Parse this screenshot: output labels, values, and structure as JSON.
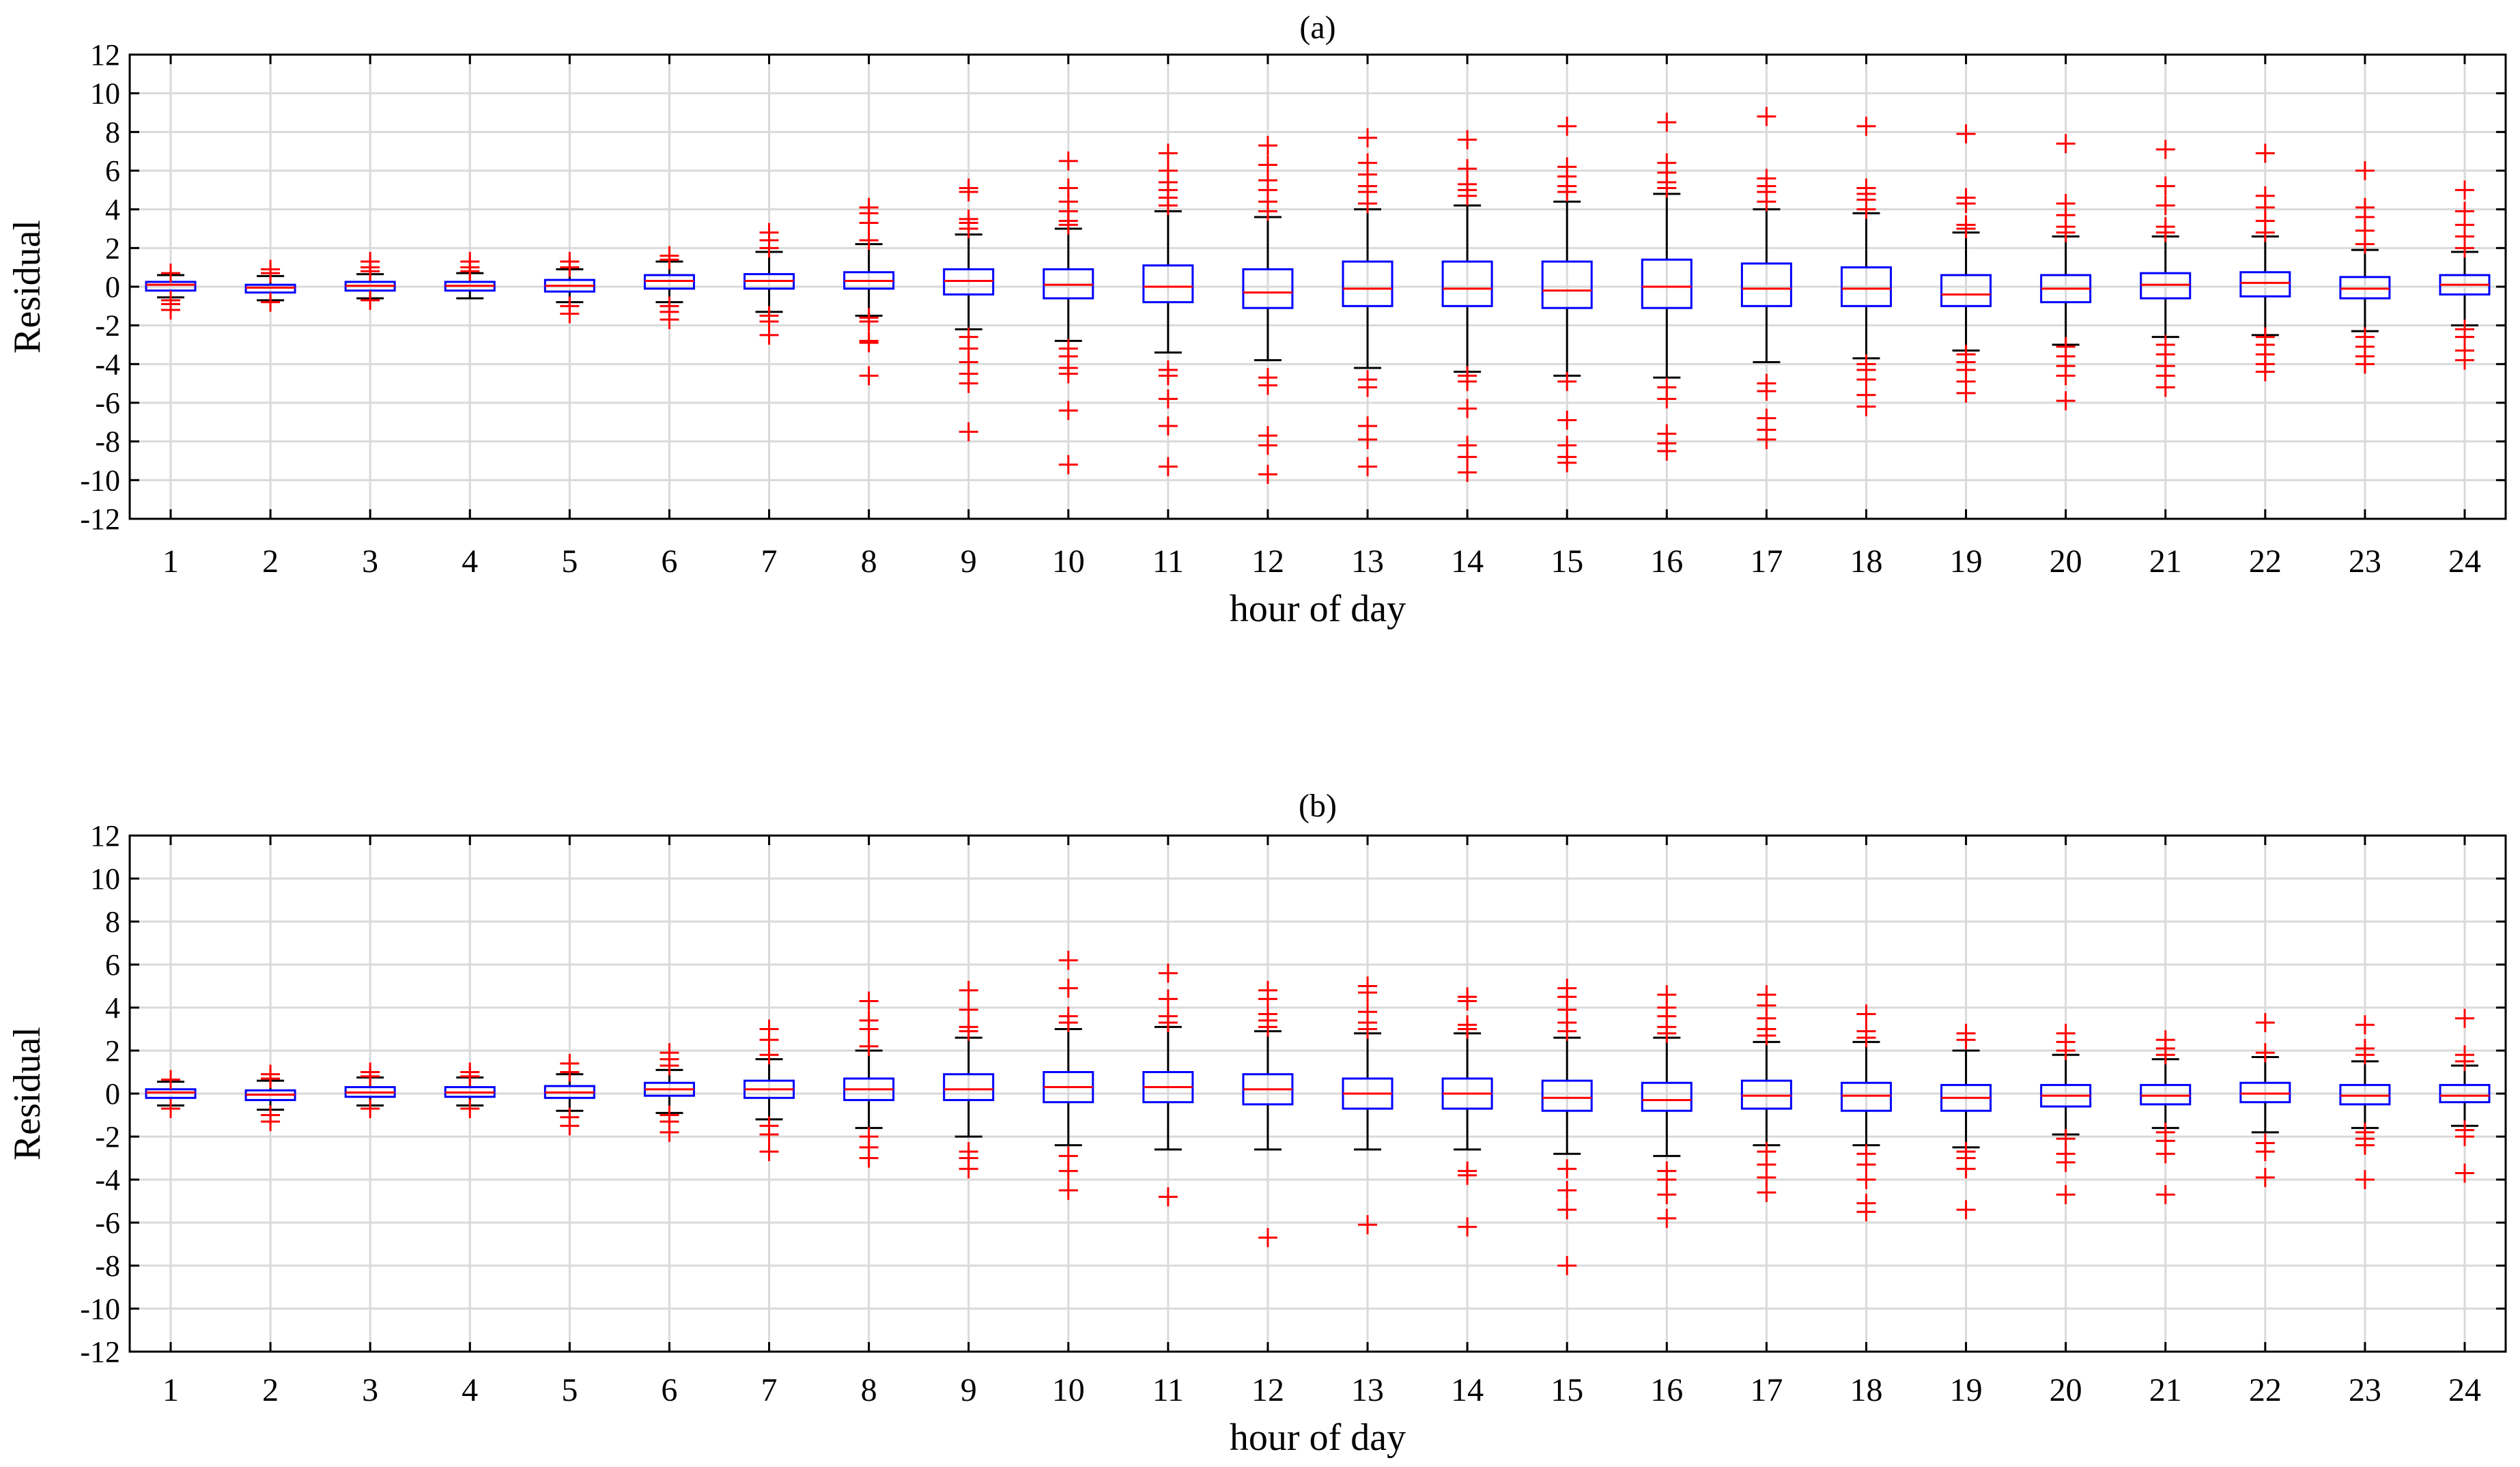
{
  "chart_data": [
    {
      "type": "box",
      "title": "(a)",
      "xlabel": "hour of day",
      "ylabel": "Residual",
      "ylim": [
        -12,
        12
      ],
      "yticks": [
        "-12",
        "-10",
        "-8",
        "-6",
        "-4",
        "-2",
        "0",
        "2",
        "4",
        "6",
        "8",
        "10",
        "12"
      ],
      "grid": true,
      "categories": [
        "1",
        "2",
        "3",
        "4",
        "5",
        "6",
        "7",
        "8",
        "9",
        "10",
        "11",
        "12",
        "13",
        "14",
        "15",
        "16",
        "17",
        "18",
        "19",
        "20",
        "21",
        "22",
        "23",
        "24"
      ],
      "boxes": [
        {
          "q1": -0.2,
          "median": 0.1,
          "q3": 0.25,
          "whisker_low": -0.55,
          "whisker_high": 0.6,
          "outliers": [
            -1.2,
            -0.9,
            -0.7,
            0.7
          ]
        },
        {
          "q1": -0.3,
          "median": -0.05,
          "q3": 0.1,
          "whisker_low": -0.7,
          "whisker_high": 0.55,
          "outliers": [
            -0.8,
            0.7,
            0.9
          ]
        },
        {
          "q1": -0.2,
          "median": 0.05,
          "q3": 0.25,
          "whisker_low": -0.6,
          "whisker_high": 0.65,
          "outliers": [
            -0.7,
            0.8,
            1.0,
            1.3
          ]
        },
        {
          "q1": -0.2,
          "median": 0.05,
          "q3": 0.25,
          "whisker_low": -0.6,
          "whisker_high": 0.7,
          "outliers": [
            0.8,
            1.0,
            1.3
          ]
        },
        {
          "q1": -0.25,
          "median": 0.05,
          "q3": 0.35,
          "whisker_low": -0.8,
          "whisker_high": 0.9,
          "outliers": [
            -1.4,
            -1.0,
            1.0,
            1.3
          ]
        },
        {
          "q1": -0.1,
          "median": 0.3,
          "q3": 0.6,
          "whisker_low": -0.8,
          "whisker_high": 1.3,
          "outliers": [
            -1.7,
            -1.3,
            -1.0,
            1.4,
            1.6
          ]
        },
        {
          "q1": -0.1,
          "median": 0.3,
          "q3": 0.65,
          "whisker_low": -1.3,
          "whisker_high": 1.8,
          "outliers": [
            -2.5,
            -1.8,
            -1.5,
            2.0,
            2.4,
            2.8
          ]
        },
        {
          "q1": -0.1,
          "median": 0.3,
          "q3": 0.75,
          "whisker_low": -1.5,
          "whisker_high": 2.2,
          "outliers": [
            -4.6,
            -2.9,
            -2.8,
            -1.8,
            -1.6,
            2.4,
            3.3,
            3.8,
            4.1
          ]
        },
        {
          "q1": -0.4,
          "median": 0.3,
          "q3": 0.9,
          "whisker_low": -2.2,
          "whisker_high": 2.7,
          "outliers": [
            -7.5,
            -5.0,
            -4.5,
            -3.9,
            -3.2,
            -2.6,
            3.0,
            3.3,
            3.5,
            4.9,
            5.1
          ]
        },
        {
          "q1": -0.6,
          "median": 0.1,
          "q3": 0.9,
          "whisker_low": -2.8,
          "whisker_high": 3.0,
          "outliers": [
            -9.2,
            -6.4,
            -4.5,
            -4.2,
            -3.6,
            -3.2,
            3.2,
            3.4,
            3.9,
            4.4,
            5.1,
            6.5
          ]
        },
        {
          "q1": -0.8,
          "median": 0.0,
          "q3": 1.1,
          "whisker_low": -3.4,
          "whisker_high": 3.9,
          "outliers": [
            -9.3,
            -7.2,
            -5.8,
            -4.6,
            -4.3,
            4.2,
            4.6,
            5.0,
            5.4,
            6.0,
            6.9
          ]
        },
        {
          "q1": -1.1,
          "median": -0.3,
          "q3": 0.9,
          "whisker_low": -3.8,
          "whisker_high": 3.6,
          "outliers": [
            -9.7,
            -8.2,
            -7.7,
            -5.1,
            -4.7,
            3.9,
            4.4,
            5.0,
            5.5,
            6.3,
            7.3
          ]
        },
        {
          "q1": -1.0,
          "median": -0.1,
          "q3": 1.3,
          "whisker_low": -4.2,
          "whisker_high": 4.0,
          "outliers": [
            -9.3,
            -7.9,
            -7.2,
            -5.2,
            -4.8,
            4.3,
            4.9,
            5.2,
            5.8,
            6.4,
            7.7
          ]
        },
        {
          "q1": -1.0,
          "median": -0.1,
          "q3": 1.3,
          "whisker_low": -4.4,
          "whisker_high": 4.2,
          "outliers": [
            -9.6,
            -8.8,
            -8.2,
            -6.3,
            -4.9,
            -4.6,
            4.7,
            5.0,
            5.3,
            6.1,
            7.6
          ]
        },
        {
          "q1": -1.1,
          "median": -0.2,
          "q3": 1.3,
          "whisker_low": -4.6,
          "whisker_high": 4.4,
          "outliers": [
            -9.1,
            -8.8,
            -8.2,
            -6.9,
            -4.9,
            4.9,
            5.2,
            5.7,
            6.2,
            8.3
          ]
        },
        {
          "q1": -1.1,
          "median": 0.0,
          "q3": 1.4,
          "whisker_low": -4.7,
          "whisker_high": 4.8,
          "outliers": [
            -8.5,
            -8.1,
            -7.6,
            -5.8,
            -5.2,
            5.1,
            5.4,
            5.9,
            6.4,
            8.5
          ]
        },
        {
          "q1": -1.0,
          "median": -0.1,
          "q3": 1.2,
          "whisker_low": -3.9,
          "whisker_high": 4.0,
          "outliers": [
            -7.9,
            -7.4,
            -6.8,
            -5.4,
            -5.0,
            4.4,
            4.9,
            5.2,
            5.6,
            8.8
          ]
        },
        {
          "q1": -1.0,
          "median": -0.1,
          "q3": 1.0,
          "whisker_low": -3.7,
          "whisker_high": 3.8,
          "outliers": [
            -6.2,
            -5.6,
            -4.8,
            -4.3,
            -4.0,
            4.0,
            4.5,
            4.8,
            5.1,
            8.3
          ]
        },
        {
          "q1": -1.0,
          "median": -0.4,
          "q3": 0.6,
          "whisker_low": -3.3,
          "whisker_high": 2.8,
          "outliers": [
            -5.5,
            -4.9,
            -4.3,
            -3.9,
            -3.5,
            3.0,
            3.2,
            4.3,
            4.6,
            7.9
          ]
        },
        {
          "q1": -0.8,
          "median": -0.1,
          "q3": 0.6,
          "whisker_low": -3.0,
          "whisker_high": 2.6,
          "outliers": [
            -5.9,
            -4.6,
            -4.1,
            -3.6,
            -3.1,
            2.8,
            3.1,
            3.7,
            4.3,
            7.4
          ]
        },
        {
          "q1": -0.6,
          "median": 0.1,
          "q3": 0.7,
          "whisker_low": -2.6,
          "whisker_high": 2.6,
          "outliers": [
            -5.2,
            -4.6,
            -4.1,
            -3.5,
            -3.0,
            2.8,
            3.1,
            4.2,
            5.2,
            7.1
          ]
        },
        {
          "q1": -0.5,
          "median": 0.2,
          "q3": 0.75,
          "whisker_low": -2.5,
          "whisker_high": 2.6,
          "outliers": [
            -4.4,
            -4.0,
            -3.5,
            -3.0,
            -2.6,
            2.8,
            3.4,
            4.1,
            4.7,
            6.9
          ]
        },
        {
          "q1": -0.6,
          "median": -0.1,
          "q3": 0.5,
          "whisker_low": -2.3,
          "whisker_high": 1.9,
          "outliers": [
            -4.0,
            -3.6,
            -3.1,
            -2.6,
            2.2,
            2.9,
            3.6,
            4.1,
            6.0
          ]
        },
        {
          "q1": -0.4,
          "median": 0.1,
          "q3": 0.6,
          "whisker_low": -2.0,
          "whisker_high": 1.8,
          "outliers": [
            -3.8,
            -3.3,
            -2.6,
            -2.2,
            2.0,
            2.6,
            3.2,
            3.9,
            5.0
          ]
        }
      ]
    },
    {
      "type": "box",
      "title": "(b)",
      "xlabel": "hour of day",
      "ylabel": "Residual",
      "ylim": [
        -12,
        12
      ],
      "yticks": [
        "-12",
        "-10",
        "-8",
        "-6",
        "-4",
        "-2",
        "0",
        "2",
        "4",
        "6",
        "8",
        "10",
        "12"
      ],
      "grid": true,
      "categories": [
        "1",
        "2",
        "3",
        "4",
        "5",
        "6",
        "7",
        "8",
        "9",
        "10",
        "11",
        "12",
        "13",
        "14",
        "15",
        "16",
        "17",
        "18",
        "19",
        "20",
        "21",
        "22",
        "23",
        "24"
      ],
      "boxes": [
        {
          "q1": -0.2,
          "median": 0.05,
          "q3": 0.2,
          "whisker_low": -0.55,
          "whisker_high": 0.55,
          "outliers": [
            -0.7,
            0.65
          ]
        },
        {
          "q1": -0.3,
          "median": -0.05,
          "q3": 0.15,
          "whisker_low": -0.75,
          "whisker_high": 0.6,
          "outliers": [
            -1.3,
            -1.0,
            0.7,
            0.9
          ]
        },
        {
          "q1": -0.15,
          "median": 0.05,
          "q3": 0.3,
          "whisker_low": -0.55,
          "whisker_high": 0.75,
          "outliers": [
            -0.7,
            0.8,
            1.0
          ]
        },
        {
          "q1": -0.15,
          "median": 0.05,
          "q3": 0.3,
          "whisker_low": -0.55,
          "whisker_high": 0.75,
          "outliers": [
            -0.7,
            0.8,
            1.0
          ]
        },
        {
          "q1": -0.2,
          "median": 0.05,
          "q3": 0.35,
          "whisker_low": -0.8,
          "whisker_high": 0.9,
          "outliers": [
            -1.5,
            -1.1,
            1.0,
            1.4
          ]
        },
        {
          "q1": -0.1,
          "median": 0.2,
          "q3": 0.5,
          "whisker_low": -0.9,
          "whisker_high": 1.1,
          "outliers": [
            -1.8,
            -1.3,
            -1.0,
            1.3,
            1.6,
            1.9
          ]
        },
        {
          "q1": -0.2,
          "median": 0.2,
          "q3": 0.6,
          "whisker_low": -1.2,
          "whisker_high": 1.6,
          "outliers": [
            -2.7,
            -1.9,
            -1.5,
            1.8,
            2.5,
            3.0
          ]
        },
        {
          "q1": -0.3,
          "median": 0.2,
          "q3": 0.7,
          "whisker_low": -1.6,
          "whisker_high": 2.0,
          "outliers": [
            -3.0,
            -2.5,
            -2.0,
            2.2,
            3.0,
            3.4,
            4.3
          ]
        },
        {
          "q1": -0.3,
          "median": 0.2,
          "q3": 0.9,
          "whisker_low": -2.0,
          "whisker_high": 2.6,
          "outliers": [
            -3.5,
            -3.0,
            -2.7,
            2.9,
            3.1,
            3.9,
            4.8
          ]
        },
        {
          "q1": -0.4,
          "median": 0.3,
          "q3": 1.0,
          "whisker_low": -2.4,
          "whisker_high": 3.0,
          "outliers": [
            -4.5,
            -3.6,
            -2.9,
            3.3,
            3.6,
            4.9,
            6.2
          ]
        },
        {
          "q1": -0.4,
          "median": 0.3,
          "q3": 1.0,
          "whisker_low": -2.6,
          "whisker_high": 3.1,
          "outliers": [
            -4.8,
            3.3,
            3.6,
            4.4,
            5.6
          ]
        },
        {
          "q1": -0.5,
          "median": 0.2,
          "q3": 0.9,
          "whisker_low": -2.6,
          "whisker_high": 2.9,
          "outliers": [
            -6.7,
            3.1,
            3.4,
            3.7,
            4.4,
            4.8
          ]
        },
        {
          "q1": -0.7,
          "median": 0.0,
          "q3": 0.7,
          "whisker_low": -2.6,
          "whisker_high": 2.8,
          "outliers": [
            -6.1,
            3.0,
            3.3,
            3.8,
            4.7,
            5.0
          ]
        },
        {
          "q1": -0.7,
          "median": 0.0,
          "q3": 0.7,
          "whisker_low": -2.6,
          "whisker_high": 2.8,
          "outliers": [
            -6.2,
            -3.8,
            -3.6,
            3.0,
            3.2,
            4.3,
            4.5
          ]
        },
        {
          "q1": -0.8,
          "median": -0.2,
          "q3": 0.6,
          "whisker_low": -2.8,
          "whisker_high": 2.6,
          "outliers": [
            -8.0,
            -5.4,
            -4.5,
            -3.5,
            2.9,
            3.3,
            3.9,
            4.5,
            4.9
          ]
        },
        {
          "q1": -0.8,
          "median": -0.3,
          "q3": 0.5,
          "whisker_low": -2.9,
          "whisker_high": 2.6,
          "outliers": [
            -5.8,
            -4.7,
            -4.0,
            -3.6,
            2.8,
            3.1,
            3.6,
            4.0,
            4.6
          ]
        },
        {
          "q1": -0.7,
          "median": -0.1,
          "q3": 0.6,
          "whisker_low": -2.4,
          "whisker_high": 2.4,
          "outliers": [
            -4.6,
            -3.9,
            -3.3,
            -2.7,
            2.7,
            3.0,
            3.5,
            4.1,
            4.6
          ]
        },
        {
          "q1": -0.8,
          "median": -0.1,
          "q3": 0.5,
          "whisker_low": -2.4,
          "whisker_high": 2.4,
          "outliers": [
            -5.5,
            -5.1,
            -4.0,
            -3.3,
            -2.8,
            2.6,
            2.9,
            3.7
          ]
        },
        {
          "q1": -0.8,
          "median": -0.2,
          "q3": 0.4,
          "whisker_low": -2.5,
          "whisker_high": 2.0,
          "outliers": [
            -5.4,
            -3.5,
            -3.0,
            -2.7,
            2.5,
            2.8
          ]
        },
        {
          "q1": -0.6,
          "median": -0.1,
          "q3": 0.4,
          "whisker_low": -1.9,
          "whisker_high": 1.8,
          "outliers": [
            -4.7,
            -3.2,
            -2.8,
            -2.1,
            2.0,
            2.4,
            2.8
          ]
        },
        {
          "q1": -0.5,
          "median": -0.1,
          "q3": 0.4,
          "whisker_low": -1.6,
          "whisker_high": 1.6,
          "outliers": [
            -4.7,
            -2.8,
            -2.2,
            -1.8,
            1.8,
            2.1,
            2.5
          ]
        },
        {
          "q1": -0.4,
          "median": 0.0,
          "q3": 0.5,
          "whisker_low": -1.8,
          "whisker_high": 1.7,
          "outliers": [
            -3.9,
            -2.7,
            -2.3,
            1.9,
            3.3
          ]
        },
        {
          "q1": -0.5,
          "median": -0.1,
          "q3": 0.4,
          "whisker_low": -1.6,
          "whisker_high": 1.5,
          "outliers": [
            -4.0,
            -2.4,
            -2.1,
            -1.8,
            1.8,
            2.1,
            3.2
          ]
        },
        {
          "q1": -0.4,
          "median": -0.1,
          "q3": 0.4,
          "whisker_low": -1.5,
          "whisker_high": 1.3,
          "outliers": [
            -3.7,
            -2.0,
            -1.7,
            1.5,
            1.8,
            3.5
          ]
        }
      ]
    }
  ]
}
